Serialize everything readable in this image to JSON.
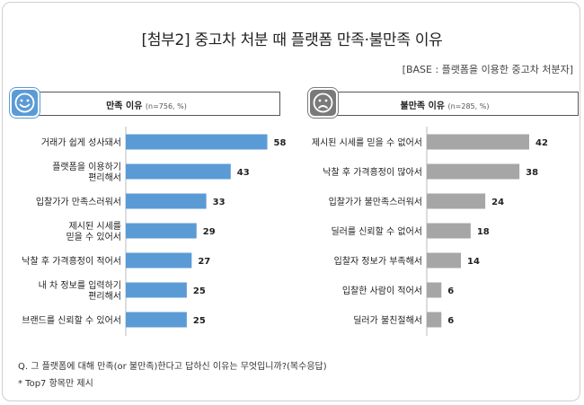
{
  "title": "[첨부2] 중고차 처분 때 플랫폼 만족·불만족 이유",
  "base": "[BASE : 플랫폼을 이용한 중고차 처분자]",
  "colors": {
    "satisfied": "#5b9bd5",
    "dissatisfied": "#a6a6a6"
  },
  "left_panel": {
    "heading": "만족 이유",
    "base": "(n=756, %)",
    "icon": "smiley-face-icon"
  },
  "right_panel": {
    "heading": "불만족 이유",
    "base": "(n=285, %)",
    "icon": "sad-face-icon"
  },
  "question": "Q. 그 플랫폼에 대해 만족(or 불만족)한다고 답하신 이유는 무엇입니까?(복수응답)",
  "note": "* Top7 항목만 제시",
  "chart_data": [
    {
      "type": "bar",
      "orientation": "horizontal",
      "title": "만족 이유",
      "categories": [
        [
          "거래가 쉽게 성사돼서"
        ],
        [
          "플랫폼을 이용하기",
          "편리해서"
        ],
        [
          "입찰가가  만족스러워서"
        ],
        [
          "제시된 시세를",
          "믿을 수 있어서"
        ],
        [
          "낙찰 후 가격흥정이 적어서"
        ],
        [
          "내 차 정보를 입력하기",
          "편리해서"
        ],
        [
          "브랜드를 신뢰할 수 있어서"
        ]
      ],
      "values": [
        58,
        43,
        33,
        29,
        27,
        25,
        25
      ],
      "color": "#5b9bd5"
    },
    {
      "type": "bar",
      "orientation": "horizontal",
      "title": "불만족 이유",
      "categories": [
        [
          "제시된 시세를 믿을 수 없어서"
        ],
        [
          "낙찰 후 가격흥정이 많아서"
        ],
        [
          "입찰가가 불만족스러워서"
        ],
        [
          "딜러를 신뢰할 수 없어서"
        ],
        [
          "입찰자 정보가 부족해서"
        ],
        [
          "입찰한 사람이 적어서"
        ],
        [
          "딜러가 불친절해서"
        ]
      ],
      "values": [
        42,
        38,
        24,
        18,
        14,
        6,
        6
      ],
      "color": "#a6a6a6"
    }
  ]
}
